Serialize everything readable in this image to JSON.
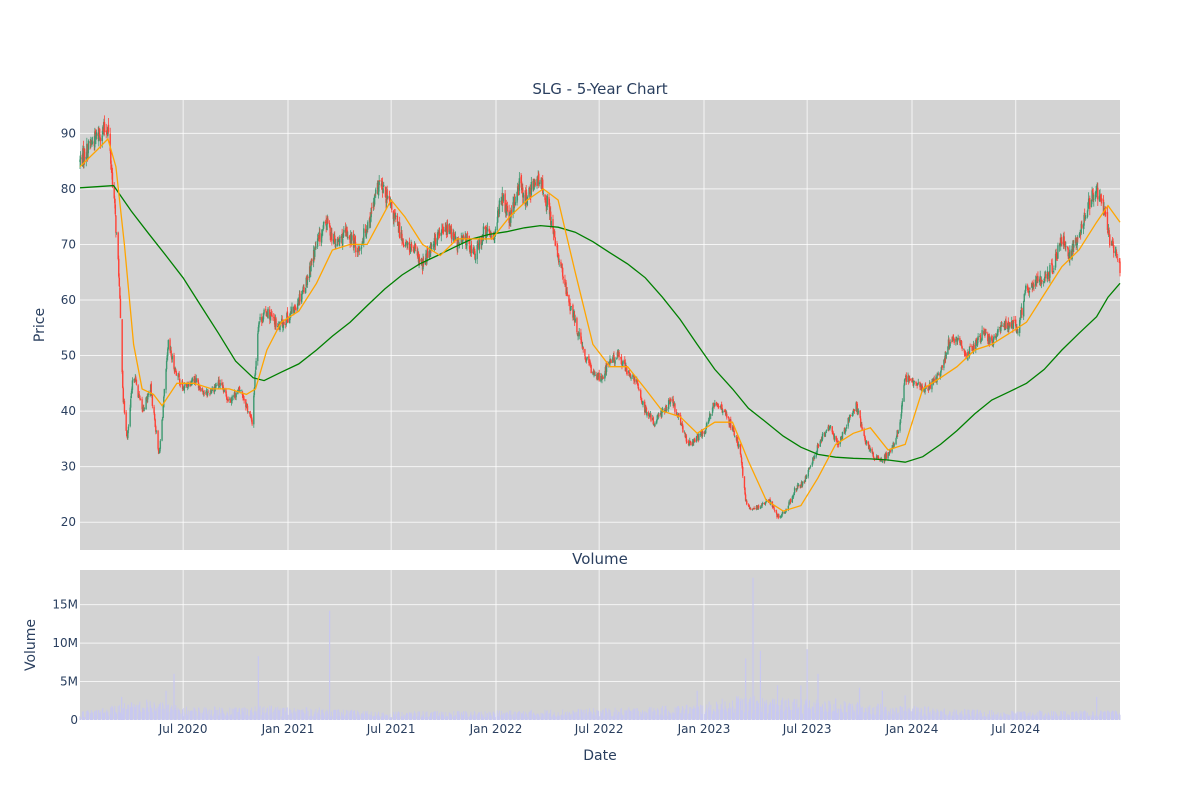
{
  "chart_data": {
    "type": "candlestick",
    "title": "SLG - 5-Year Chart",
    "volume_title": "Volume",
    "xlabel": "Date",
    "ylabel": "Price",
    "volume_ylabel": "Volume",
    "x_range": [
      "2020-01-02",
      "2024-12-31"
    ],
    "ylim": [
      15,
      96
    ],
    "volume_ylim": [
      0,
      19500000
    ],
    "y_ticks": [
      20,
      30,
      40,
      50,
      60,
      70,
      80,
      90
    ],
    "volume_ticks": [
      {
        "value": 0,
        "label": "0"
      },
      {
        "value": 5000000,
        "label": "5M"
      },
      {
        "value": 10000000,
        "label": "10M"
      },
      {
        "value": 15000000,
        "label": "15M"
      }
    ],
    "x_ticks": [
      {
        "date": "2020-07-01",
        "label": "Jul 2020"
      },
      {
        "date": "2021-01-01",
        "label": "Jan 2021"
      },
      {
        "date": "2021-07-01",
        "label": "Jul 2021"
      },
      {
        "date": "2022-01-01",
        "label": "Jan 2022"
      },
      {
        "date": "2022-07-01",
        "label": "Jul 2022"
      },
      {
        "date": "2023-01-01",
        "label": "Jan 2023"
      },
      {
        "date": "2023-07-01",
        "label": "Jul 2023"
      },
      {
        "date": "2024-01-01",
        "label": "Jan 2024"
      },
      {
        "date": "2024-07-01",
        "label": "Jul 2024"
      }
    ],
    "grid": true,
    "colors": {
      "plot_bg": "#d3d3d3",
      "up": "#3d9970",
      "down": "#ff4136",
      "sma_short": "#ffa500",
      "sma_long": "#008000",
      "volume": "#c8c8f0",
      "text": "#2a3f5f"
    },
    "price_path": [
      [
        "2020-01-02",
        85
      ],
      [
        "2020-01-20",
        88
      ],
      [
        "2020-02-05",
        90
      ],
      [
        "2020-02-20",
        91
      ],
      [
        "2020-03-02",
        78
      ],
      [
        "2020-03-10",
        65
      ],
      [
        "2020-03-18",
        42
      ],
      [
        "2020-03-25",
        35
      ],
      [
        "2020-04-05",
        47
      ],
      [
        "2020-04-20",
        40
      ],
      [
        "2020-05-05",
        44
      ],
      [
        "2020-05-20",
        32
      ],
      [
        "2020-06-05",
        52
      ],
      [
        "2020-06-15",
        48
      ],
      [
        "2020-07-01",
        44
      ],
      [
        "2020-07-20",
        46
      ],
      [
        "2020-08-10",
        43
      ],
      [
        "2020-09-01",
        45
      ],
      [
        "2020-09-20",
        42
      ],
      [
        "2020-10-10",
        44
      ],
      [
        "2020-10-30",
        38
      ],
      [
        "2020-11-10",
        56
      ],
      [
        "2020-11-25",
        58
      ],
      [
        "2020-12-15",
        55
      ],
      [
        "2021-01-10",
        58
      ],
      [
        "2021-02-01",
        63
      ],
      [
        "2021-02-20",
        70
      ],
      [
        "2021-03-10",
        74
      ],
      [
        "2021-03-25",
        70
      ],
      [
        "2021-04-15",
        72
      ],
      [
        "2021-05-05",
        69
      ],
      [
        "2021-05-25",
        75
      ],
      [
        "2021-06-10",
        81
      ],
      [
        "2021-06-25",
        78
      ],
      [
        "2021-07-10",
        74
      ],
      [
        "2021-07-25",
        70
      ],
      [
        "2021-08-10",
        69
      ],
      [
        "2021-08-25",
        66
      ],
      [
        "2021-09-10",
        70
      ],
      [
        "2021-09-25",
        72
      ],
      [
        "2021-10-10",
        73
      ],
      [
        "2021-10-25",
        70
      ],
      [
        "2021-11-10",
        71
      ],
      [
        "2021-11-25",
        68
      ],
      [
        "2021-12-10",
        72
      ],
      [
        "2021-12-31",
        72
      ],
      [
        "2022-01-10",
        79
      ],
      [
        "2022-01-25",
        74
      ],
      [
        "2022-02-10",
        81
      ],
      [
        "2022-02-25",
        78
      ],
      [
        "2022-03-10",
        82
      ],
      [
        "2022-03-25",
        80
      ],
      [
        "2022-04-05",
        76
      ],
      [
        "2022-04-15",
        70
      ],
      [
        "2022-04-25",
        66
      ],
      [
        "2022-05-05",
        61
      ],
      [
        "2022-05-20",
        56
      ],
      [
        "2022-06-05",
        50
      ],
      [
        "2022-06-20",
        47
      ],
      [
        "2022-07-05",
        46
      ],
      [
        "2022-07-20",
        49
      ],
      [
        "2022-08-05",
        50
      ],
      [
        "2022-08-20",
        47
      ],
      [
        "2022-09-05",
        45
      ],
      [
        "2022-09-20",
        40
      ],
      [
        "2022-10-05",
        38
      ],
      [
        "2022-10-20",
        40
      ],
      [
        "2022-11-05",
        42
      ],
      [
        "2022-11-20",
        38
      ],
      [
        "2022-12-05",
        34
      ],
      [
        "2022-12-20",
        35
      ],
      [
        "2023-01-05",
        37
      ],
      [
        "2023-01-20",
        42
      ],
      [
        "2023-02-05",
        40
      ],
      [
        "2023-02-20",
        37
      ],
      [
        "2023-03-05",
        33
      ],
      [
        "2023-03-15",
        24
      ],
      [
        "2023-03-25",
        22
      ],
      [
        "2023-04-10",
        23
      ],
      [
        "2023-04-25",
        24
      ],
      [
        "2023-05-10",
        21
      ],
      [
        "2023-05-25",
        22
      ],
      [
        "2023-06-10",
        26
      ],
      [
        "2023-06-25",
        27
      ],
      [
        "2023-07-10",
        31
      ],
      [
        "2023-07-25",
        35
      ],
      [
        "2023-08-10",
        37
      ],
      [
        "2023-08-25",
        34
      ],
      [
        "2023-09-10",
        38
      ],
      [
        "2023-09-25",
        41
      ],
      [
        "2023-10-10",
        35
      ],
      [
        "2023-10-25",
        32
      ],
      [
        "2023-11-10",
        31
      ],
      [
        "2023-11-25",
        33
      ],
      [
        "2023-12-10",
        37
      ],
      [
        "2023-12-20",
        46
      ],
      [
        "2024-01-05",
        45
      ],
      [
        "2024-01-20",
        44
      ],
      [
        "2024-02-05",
        45
      ],
      [
        "2024-02-20",
        47
      ],
      [
        "2024-03-05",
        52
      ],
      [
        "2024-03-20",
        53
      ],
      [
        "2024-04-05",
        50
      ],
      [
        "2024-04-20",
        52
      ],
      [
        "2024-05-05",
        54
      ],
      [
        "2024-05-20",
        52
      ],
      [
        "2024-06-05",
        55
      ],
      [
        "2024-06-20",
        56
      ],
      [
        "2024-07-05",
        55
      ],
      [
        "2024-07-20",
        62
      ],
      [
        "2024-08-05",
        63
      ],
      [
        "2024-08-20",
        64
      ],
      [
        "2024-09-05",
        66
      ],
      [
        "2024-09-20",
        71
      ],
      [
        "2024-10-05",
        68
      ],
      [
        "2024-10-20",
        72
      ],
      [
        "2024-11-05",
        77
      ],
      [
        "2024-11-20",
        80
      ],
      [
        "2024-12-01",
        77
      ],
      [
        "2024-12-15",
        70
      ],
      [
        "2024-12-31",
        66
      ]
    ],
    "sma_short": [
      [
        "2020-01-02",
        84
      ],
      [
        "2020-02-01",
        87
      ],
      [
        "2020-02-20",
        89
      ],
      [
        "2020-03-05",
        84
      ],
      [
        "2020-03-20",
        70
      ],
      [
        "2020-04-05",
        52
      ],
      [
        "2020-04-20",
        44
      ],
      [
        "2020-05-10",
        43
      ],
      [
        "2020-05-25",
        41
      ],
      [
        "2020-06-20",
        45
      ],
      [
        "2020-07-20",
        45
      ],
      [
        "2020-08-20",
        44
      ],
      [
        "2020-09-20",
        44
      ],
      [
        "2020-10-20",
        43
      ],
      [
        "2020-11-05",
        44
      ],
      [
        "2020-11-25",
        51
      ],
      [
        "2020-12-20",
        56
      ],
      [
        "2021-01-20",
        58
      ],
      [
        "2021-02-20",
        63
      ],
      [
        "2021-03-20",
        69
      ],
      [
        "2021-04-20",
        70
      ],
      [
        "2021-05-20",
        70
      ],
      [
        "2021-06-10",
        74
      ],
      [
        "2021-07-01",
        78
      ],
      [
        "2021-07-25",
        75
      ],
      [
        "2021-08-25",
        70
      ],
      [
        "2021-09-25",
        68
      ],
      [
        "2021-10-25",
        71
      ],
      [
        "2021-11-25",
        71
      ],
      [
        "2021-12-25",
        71
      ],
      [
        "2022-01-25",
        75
      ],
      [
        "2022-02-25",
        78
      ],
      [
        "2022-03-25",
        80
      ],
      [
        "2022-04-20",
        78
      ],
      [
        "2022-05-20",
        65
      ],
      [
        "2022-06-20",
        52
      ],
      [
        "2022-07-20",
        48
      ],
      [
        "2022-08-20",
        48
      ],
      [
        "2022-09-20",
        44
      ],
      [
        "2022-10-20",
        40
      ],
      [
        "2022-11-20",
        39
      ],
      [
        "2022-12-20",
        36
      ],
      [
        "2023-01-20",
        38
      ],
      [
        "2023-02-20",
        38
      ],
      [
        "2023-03-20",
        31
      ],
      [
        "2023-04-20",
        24
      ],
      [
        "2023-05-20",
        22
      ],
      [
        "2023-06-20",
        23
      ],
      [
        "2023-07-20",
        28
      ],
      [
        "2023-08-20",
        34
      ],
      [
        "2023-09-20",
        36
      ],
      [
        "2023-10-20",
        37
      ],
      [
        "2023-11-20",
        33
      ],
      [
        "2023-12-20",
        34
      ],
      [
        "2024-01-20",
        44
      ],
      [
        "2024-02-20",
        46
      ],
      [
        "2024-03-20",
        48
      ],
      [
        "2024-04-20",
        51
      ],
      [
        "2024-05-20",
        52
      ],
      [
        "2024-06-20",
        54
      ],
      [
        "2024-07-20",
        56
      ],
      [
        "2024-08-20",
        61
      ],
      [
        "2024-09-20",
        66
      ],
      [
        "2024-10-20",
        69
      ],
      [
        "2024-11-20",
        74
      ],
      [
        "2024-12-10",
        77
      ],
      [
        "2024-12-31",
        74
      ]
    ],
    "sma_long": [
      [
        "2020-01-02",
        80.2
      ],
      [
        "2020-02-01",
        80.4
      ],
      [
        "2020-03-01",
        80.6
      ],
      [
        "2020-04-01",
        76
      ],
      [
        "2020-05-01",
        72
      ],
      [
        "2020-06-01",
        68
      ],
      [
        "2020-07-01",
        64
      ],
      [
        "2020-08-01",
        59
      ],
      [
        "2020-09-01",
        54
      ],
      [
        "2020-10-01",
        49
      ],
      [
        "2020-11-01",
        46
      ],
      [
        "2020-11-20",
        45.5
      ],
      [
        "2020-12-20",
        47
      ],
      [
        "2021-01-20",
        48.5
      ],
      [
        "2021-02-20",
        51
      ],
      [
        "2021-03-20",
        53.5
      ],
      [
        "2021-04-20",
        56
      ],
      [
        "2021-05-20",
        59
      ],
      [
        "2021-06-20",
        62
      ],
      [
        "2021-07-20",
        64.5
      ],
      [
        "2021-08-20",
        66.5
      ],
      [
        "2021-09-20",
        68
      ],
      [
        "2021-10-20",
        69.5
      ],
      [
        "2021-11-20",
        71
      ],
      [
        "2021-12-20",
        71.8
      ],
      [
        "2022-01-20",
        72.3
      ],
      [
        "2022-02-20",
        73
      ],
      [
        "2022-03-20",
        73.4
      ],
      [
        "2022-04-20",
        73.1
      ],
      [
        "2022-05-20",
        72.2
      ],
      [
        "2022-06-20",
        70.5
      ],
      [
        "2022-07-20",
        68.5
      ],
      [
        "2022-08-20",
        66.5
      ],
      [
        "2022-09-20",
        64
      ],
      [
        "2022-10-20",
        60.5
      ],
      [
        "2022-11-20",
        56.5
      ],
      [
        "2022-12-20",
        52
      ],
      [
        "2023-01-20",
        47.5
      ],
      [
        "2023-02-20",
        44
      ],
      [
        "2023-03-20",
        40.5
      ],
      [
        "2023-04-20",
        38
      ],
      [
        "2023-05-20",
        35.5
      ],
      [
        "2023-06-20",
        33.5
      ],
      [
        "2023-07-20",
        32.2
      ],
      [
        "2023-08-20",
        31.7
      ],
      [
        "2023-09-20",
        31.5
      ],
      [
        "2023-10-20",
        31.4
      ],
      [
        "2023-11-20",
        31.2
      ],
      [
        "2023-12-20",
        30.8
      ],
      [
        "2024-01-20",
        31.8
      ],
      [
        "2024-02-20",
        34
      ],
      [
        "2024-03-20",
        36.5
      ],
      [
        "2024-04-20",
        39.5
      ],
      [
        "2024-05-20",
        42
      ],
      [
        "2024-06-20",
        43.5
      ],
      [
        "2024-07-20",
        45
      ],
      [
        "2024-08-20",
        47.5
      ],
      [
        "2024-09-20",
        51
      ],
      [
        "2024-10-20",
        54
      ],
      [
        "2024-11-20",
        57
      ],
      [
        "2024-12-10",
        60.5
      ],
      [
        "2024-12-31",
        63
      ]
    ],
    "volume_spikes": [
      [
        "2020-03-15",
        3000000
      ],
      [
        "2020-06-01",
        3800000
      ],
      [
        "2020-06-15",
        6000000
      ],
      [
        "2020-11-10",
        8300000
      ],
      [
        "2021-03-15",
        14200000
      ],
      [
        "2022-12-20",
        3800000
      ],
      [
        "2023-03-15",
        8000000
      ],
      [
        "2023-03-28",
        18500000
      ],
      [
        "2023-04-10",
        9000000
      ],
      [
        "2023-05-10",
        4500000
      ],
      [
        "2023-06-20",
        4500000
      ],
      [
        "2023-07-01",
        9200000
      ],
      [
        "2023-07-20",
        6000000
      ],
      [
        "2023-08-20",
        2800000
      ],
      [
        "2023-10-01",
        4200000
      ],
      [
        "2023-11-10",
        3800000
      ],
      [
        "2023-12-20",
        3200000
      ],
      [
        "2024-11-20",
        3000000
      ]
    ],
    "volume_baseline": [
      [
        "2020-01-02",
        900000
      ],
      [
        "2020-03-01",
        1600000
      ],
      [
        "2020-05-01",
        2200000
      ],
      [
        "2020-07-01",
        1400000
      ],
      [
        "2020-12-01",
        1500000
      ],
      [
        "2021-03-01",
        1300000
      ],
      [
        "2021-06-01",
        900000
      ],
      [
        "2022-01-01",
        1000000
      ],
      [
        "2022-06-01",
        1200000
      ],
      [
        "2022-10-01",
        1400000
      ],
      [
        "2023-01-01",
        1800000
      ],
      [
        "2023-03-01",
        2600000
      ],
      [
        "2023-05-01",
        2400000
      ],
      [
        "2023-09-01",
        2000000
      ],
      [
        "2024-01-01",
        1500000
      ],
      [
        "2024-06-01",
        1000000
      ],
      [
        "2024-12-31",
        1000000
      ]
    ]
  }
}
